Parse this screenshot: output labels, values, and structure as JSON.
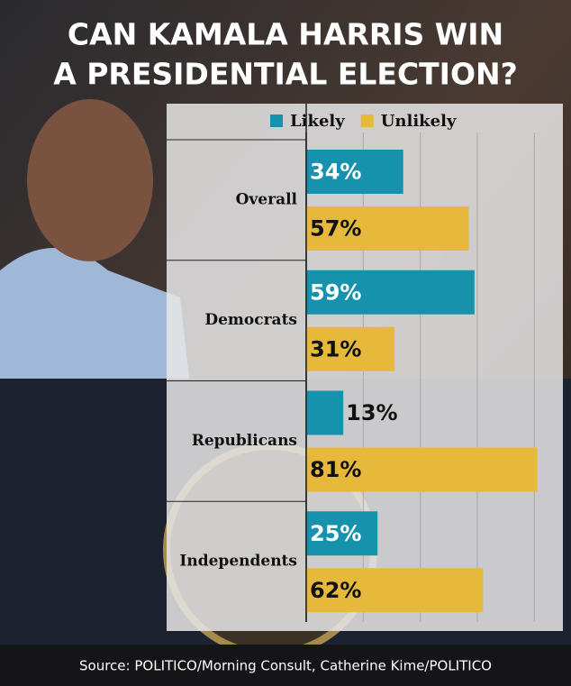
{
  "chart_data": {
    "type": "bar",
    "orientation": "horizontal",
    "title": "CAN KAMALA HARRIS WIN A PRESIDENTIAL ELECTION?",
    "title_lines": [
      "CAN KAMALA HARRIS WIN",
      "A PRESIDENTIAL ELECTION?"
    ],
    "source": "Source: POLITICO/Morning Consult, Catherine Kime/POLITICO",
    "categories": [
      "Overall",
      "Democrats",
      "Republicans",
      "Independents"
    ],
    "series": [
      {
        "name": "Likely",
        "color": "#1792ad",
        "values": [
          34,
          59,
          13,
          25
        ],
        "value_labels": [
          "34%",
          "59%",
          "13%",
          "25%"
        ]
      },
      {
        "name": "Unlikely",
        "color": "#e6b93a",
        "values": [
          57,
          31,
          81,
          62
        ],
        "value_labels": [
          "57%",
          "31%",
          "81%",
          "62%"
        ]
      }
    ],
    "xlim": [
      0,
      90
    ],
    "xticks": [
      0,
      20,
      40,
      60,
      80
    ],
    "grid": true,
    "legend": "top"
  }
}
